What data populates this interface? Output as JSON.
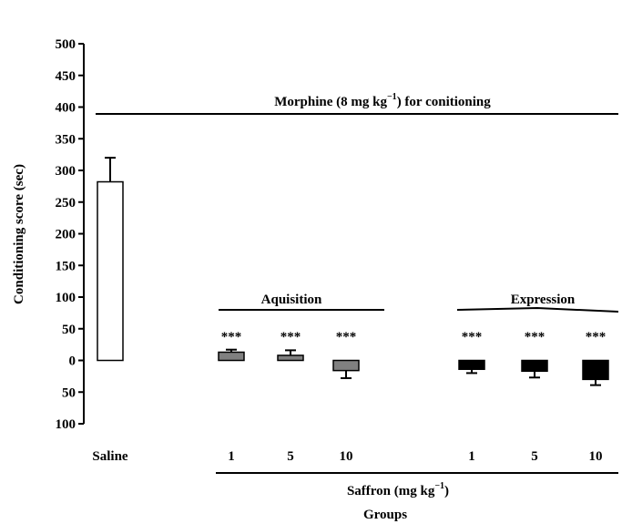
{
  "chart_data": {
    "type": "bar",
    "ylabel": "Conditioning score (sec)",
    "xlabel": "Groups",
    "ylim": [
      -100,
      500
    ],
    "yticks": [
      {
        "value": 500,
        "label": "500"
      },
      {
        "value": 450,
        "label": "450"
      },
      {
        "value": 400,
        "label": "400"
      },
      {
        "value": 350,
        "label": "350"
      },
      {
        "value": 300,
        "label": "300"
      },
      {
        "value": 250,
        "label": "250"
      },
      {
        "value": 200,
        "label": "200"
      },
      {
        "value": 150,
        "label": "150"
      },
      {
        "value": 100,
        "label": "100"
      },
      {
        "value": 50,
        "label": "50"
      },
      {
        "value": 0,
        "label": "0"
      },
      {
        "value": -50,
        "label": "50"
      },
      {
        "value": -100,
        "label": "100"
      }
    ],
    "categories": [
      "Saline",
      "1",
      "5",
      "10",
      "1",
      "5",
      "10"
    ],
    "values": [
      282,
      13,
      8,
      -16,
      -14,
      -17,
      -30
    ],
    "errors": [
      38,
      4,
      8,
      12,
      6,
      10,
      9
    ],
    "bar_colors": [
      "#ffffff",
      "#808080",
      "#808080",
      "#808080",
      "#000000",
      "#000000",
      "#000000"
    ],
    "significance": [
      "",
      "***",
      "***",
      "***",
      "***",
      "***",
      "***"
    ],
    "grid": false,
    "annotations": {
      "top_line": "Morphine (8 mg kg",
      "top_line_sup": "−1",
      "top_line_tail": ") for conitioning",
      "acquisition": "Aquisition",
      "expression": "Expression",
      "saffron": "Saffron (mg kg",
      "saffron_sup": "−1",
      "saffron_tail": ")"
    }
  }
}
